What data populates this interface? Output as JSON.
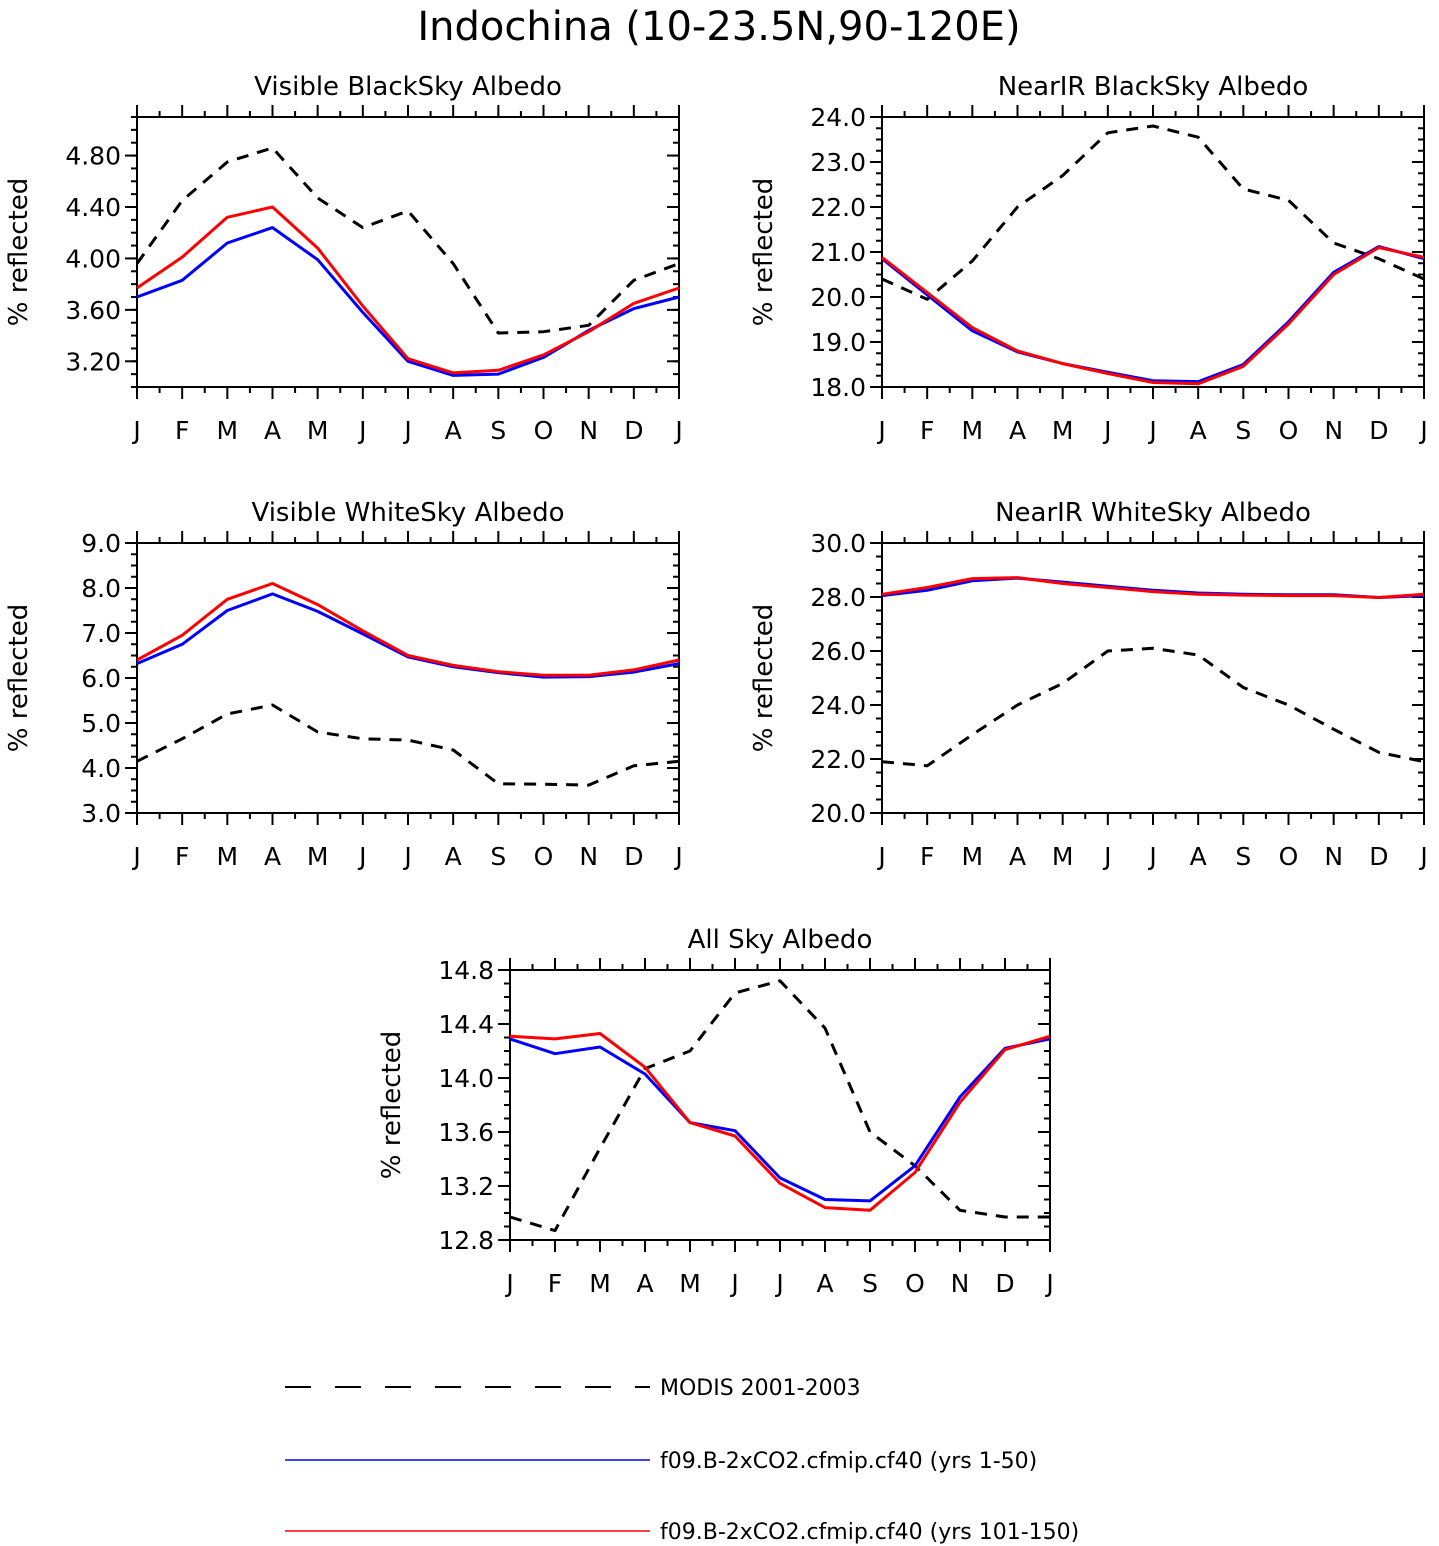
{
  "figure": {
    "title": "Indochina (10-23.5N,90-120E)"
  },
  "legend": [
    {
      "label": "MODIS 2001-2003",
      "color": "#000000",
      "style": "dashed"
    },
    {
      "label": "f09.B-2xCO2.cfmip.cf40 (yrs 1-50)",
      "color": "#0000ff",
      "style": "solid"
    },
    {
      "label": "f09.B-2xCO2.cfmip.cf40 (yrs 101-150)",
      "color": "#ff0000",
      "style": "solid"
    }
  ],
  "chart_data": [
    {
      "type": "line",
      "title": "Visible BlackSky Albedo",
      "ylabel": "% reflected",
      "categories": [
        "J",
        "F",
        "M",
        "A",
        "M",
        "J",
        "J",
        "A",
        "S",
        "O",
        "N",
        "D",
        "J"
      ],
      "ylim": [
        3.0,
        5.1
      ],
      "yticks": [
        "3.20",
        "3.60",
        "4.00",
        "4.40",
        "4.80"
      ],
      "ytick_values": [
        3.2,
        3.6,
        4.0,
        4.4,
        4.8
      ],
      "series": [
        {
          "name": "MODIS 2001-2003",
          "color": "#000000",
          "dash": true,
          "values": [
            3.96,
            4.45,
            4.75,
            4.86,
            4.47,
            4.24,
            4.37,
            3.96,
            3.42,
            3.43,
            3.48,
            3.83,
            3.96
          ]
        },
        {
          "name": "f09.B-2xCO2.cfmip.cf40 (yrs 1-50)",
          "color": "#0000ff",
          "dash": false,
          "values": [
            3.7,
            3.83,
            4.12,
            4.24,
            3.99,
            3.58,
            3.2,
            3.09,
            3.1,
            3.23,
            3.44,
            3.61,
            3.7
          ]
        },
        {
          "name": "f09.B-2xCO2.cfmip.cf40 (yrs 101-150)",
          "color": "#ff0000",
          "dash": false,
          "values": [
            3.77,
            4.01,
            4.32,
            4.4,
            4.08,
            3.63,
            3.22,
            3.11,
            3.13,
            3.25,
            3.43,
            3.65,
            3.77
          ]
        }
      ]
    },
    {
      "type": "line",
      "title": "NearIR BlackSky Albedo",
      "ylabel": "% reflected",
      "categories": [
        "J",
        "F",
        "M",
        "A",
        "M",
        "J",
        "J",
        "A",
        "S",
        "O",
        "N",
        "D",
        "J"
      ],
      "ylim": [
        18.0,
        24.0
      ],
      "yticks": [
        "18.0",
        "19.0",
        "20.0",
        "21.0",
        "22.0",
        "23.0",
        "24.0"
      ],
      "ytick_values": [
        18.0,
        19.0,
        20.0,
        21.0,
        22.0,
        23.0,
        24.0
      ],
      "series": [
        {
          "name": "MODIS 2001-2003",
          "color": "#000000",
          "dash": true,
          "values": [
            20.4,
            19.95,
            20.8,
            22.0,
            22.7,
            23.65,
            23.8,
            23.55,
            22.4,
            22.15,
            21.2,
            20.85,
            20.4
          ]
        },
        {
          "name": "f09.B-2xCO2.cfmip.cf40 (yrs 1-50)",
          "color": "#0000ff",
          "dash": false,
          "values": [
            20.85,
            20.05,
            19.25,
            18.78,
            18.52,
            18.33,
            18.14,
            18.12,
            18.5,
            19.45,
            20.55,
            21.12,
            20.85
          ]
        },
        {
          "name": "f09.B-2xCO2.cfmip.cf40 (yrs 101-150)",
          "color": "#ff0000",
          "dash": false,
          "values": [
            20.88,
            20.1,
            19.32,
            18.8,
            18.52,
            18.3,
            18.1,
            18.07,
            18.46,
            19.4,
            20.5,
            21.1,
            20.88
          ]
        }
      ]
    },
    {
      "type": "line",
      "title": "Visible WhiteSky Albedo",
      "ylabel": "% reflected",
      "categories": [
        "J",
        "F",
        "M",
        "A",
        "M",
        "J",
        "J",
        "A",
        "S",
        "O",
        "N",
        "D",
        "J"
      ],
      "ylim": [
        3.0,
        9.0
      ],
      "yticks": [
        "3.0",
        "4.0",
        "5.0",
        "6.0",
        "7.0",
        "8.0",
        "9.0"
      ],
      "ytick_values": [
        3.0,
        4.0,
        5.0,
        6.0,
        7.0,
        8.0,
        9.0
      ],
      "series": [
        {
          "name": "MODIS 2001-2003",
          "color": "#000000",
          "dash": true,
          "values": [
            4.15,
            4.65,
            5.2,
            5.4,
            4.8,
            4.65,
            4.62,
            4.4,
            3.65,
            3.64,
            3.62,
            4.05,
            4.15
          ]
        },
        {
          "name": "f09.B-2xCO2.cfmip.cf40 (yrs 1-50)",
          "color": "#0000ff",
          "dash": false,
          "values": [
            6.32,
            6.75,
            7.5,
            7.87,
            7.48,
            6.98,
            6.47,
            6.25,
            6.12,
            6.02,
            6.03,
            6.13,
            6.32
          ]
        },
        {
          "name": "f09.B-2xCO2.cfmip.cf40 (yrs 101-150)",
          "color": "#ff0000",
          "dash": false,
          "values": [
            6.4,
            6.95,
            7.75,
            8.1,
            7.63,
            7.05,
            6.5,
            6.28,
            6.14,
            6.06,
            6.06,
            6.18,
            6.4
          ]
        }
      ]
    },
    {
      "type": "line",
      "title": "NearIR WhiteSky Albedo",
      "ylabel": "% reflected",
      "categories": [
        "J",
        "F",
        "M",
        "A",
        "M",
        "J",
        "J",
        "A",
        "S",
        "O",
        "N",
        "D",
        "J"
      ],
      "ylim": [
        20.0,
        30.0
      ],
      "yticks": [
        "20.0",
        "22.0",
        "24.0",
        "26.0",
        "28.0",
        "30.0"
      ],
      "ytick_values": [
        20.0,
        22.0,
        24.0,
        26.0,
        28.0,
        30.0
      ],
      "series": [
        {
          "name": "MODIS 2001-2003",
          "color": "#000000",
          "dash": true,
          "values": [
            21.9,
            21.75,
            22.9,
            24.0,
            24.8,
            26.0,
            26.1,
            25.85,
            24.65,
            24.0,
            23.1,
            22.25,
            21.9
          ]
        },
        {
          "name": "f09.B-2xCO2.cfmip.cf40 (yrs 1-50)",
          "color": "#0000ff",
          "dash": false,
          "values": [
            28.05,
            28.25,
            28.6,
            28.7,
            28.55,
            28.4,
            28.25,
            28.15,
            28.1,
            28.08,
            28.08,
            27.98,
            28.05
          ]
        },
        {
          "name": "f09.B-2xCO2.cfmip.cf40 (yrs 101-150)",
          "color": "#ff0000",
          "dash": false,
          "values": [
            28.1,
            28.35,
            28.68,
            28.72,
            28.5,
            28.35,
            28.2,
            28.1,
            28.07,
            28.05,
            28.05,
            27.98,
            28.1
          ]
        }
      ]
    },
    {
      "type": "line",
      "title": "All Sky Albedo",
      "ylabel": "% reflected",
      "categories": [
        "J",
        "F",
        "M",
        "A",
        "M",
        "J",
        "J",
        "A",
        "S",
        "O",
        "N",
        "D",
        "J"
      ],
      "ylim": [
        12.8,
        14.8
      ],
      "yticks": [
        "12.8",
        "13.2",
        "13.6",
        "14.0",
        "14.4",
        "14.8"
      ],
      "ytick_values": [
        12.8,
        13.2,
        13.6,
        14.0,
        14.4,
        14.8
      ],
      "series": [
        {
          "name": "MODIS 2001-2003",
          "color": "#000000",
          "dash": true,
          "values": [
            12.97,
            12.87,
            13.48,
            14.07,
            14.2,
            14.63,
            14.72,
            14.37,
            13.6,
            13.35,
            13.02,
            12.97,
            12.97
          ]
        },
        {
          "name": "f09.B-2xCO2.cfmip.cf40 (yrs 1-50)",
          "color": "#0000ff",
          "dash": false,
          "values": [
            14.29,
            14.18,
            14.23,
            14.03,
            13.67,
            13.61,
            13.26,
            13.1,
            13.09,
            13.35,
            13.86,
            14.22,
            14.29
          ]
        },
        {
          "name": "f09.B-2xCO2.cfmip.cf40 (yrs 101-150)",
          "color": "#ff0000",
          "dash": false,
          "values": [
            14.31,
            14.29,
            14.33,
            14.08,
            13.67,
            13.57,
            13.22,
            13.04,
            13.02,
            13.3,
            13.82,
            14.21,
            14.31
          ]
        }
      ]
    }
  ]
}
